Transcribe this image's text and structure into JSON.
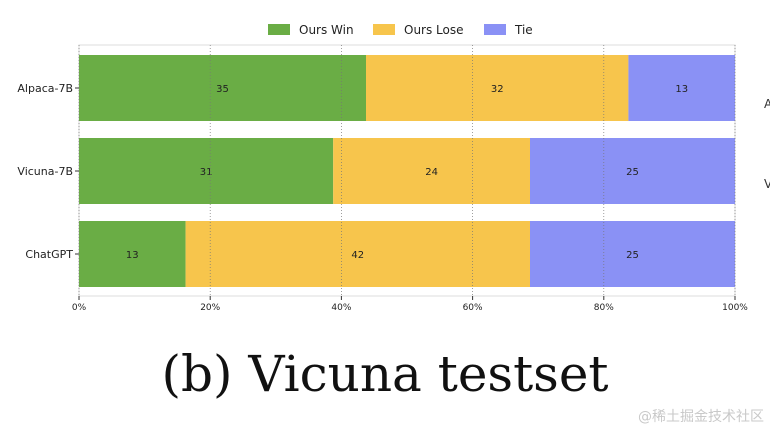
{
  "chart_data": {
    "type": "bar",
    "orientation": "horizontal",
    "stacked": true,
    "categories": [
      "Alpaca-7B",
      "Vicuna-7B",
      "ChatGPT"
    ],
    "series": [
      {
        "name": "Ours Win",
        "values": [
          35,
          31,
          13
        ],
        "color": "#6aad45"
      },
      {
        "name": "Ours Lose",
        "values": [
          32,
          24,
          42
        ],
        "color": "#f7c54c"
      },
      {
        "name": "Tie",
        "values": [
          13,
          25,
          25
        ],
        "color": "#8a91f5"
      }
    ],
    "x_ticks": [
      "0%",
      "20%",
      "40%",
      "60%",
      "80%",
      "100%"
    ],
    "xlim": [
      0,
      100
    ],
    "grid": "vertical dotted",
    "legend_position": "top-center",
    "caption": "(b) Vicuna testset"
  },
  "watermark": "@稀土掘金技术社区",
  "edge_marks": [
    "A",
    "V"
  ]
}
